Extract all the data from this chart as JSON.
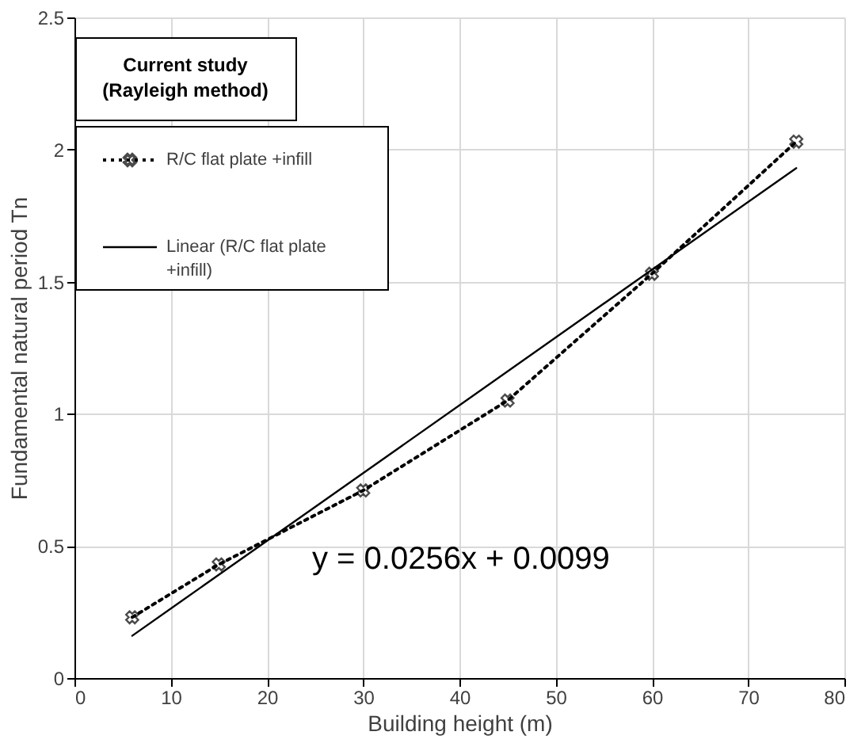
{
  "chart_data": {
    "type": "line",
    "xlabel": "Building height (m)",
    "ylabel": "Fundamental natural period Tn",
    "legend_title": "Current study\n(Rayleigh method)",
    "legend": "top left",
    "grid": true,
    "xlim": [
      0,
      80
    ],
    "xticks": [
      0,
      10,
      20,
      30,
      40,
      50,
      60,
      70,
      80
    ],
    "ylim": [
      0,
      2.5
    ],
    "yticks": [
      0,
      0.5,
      1,
      1.5,
      2,
      2.5
    ],
    "annotations": [
      "y = 0.0256x + 0.0099"
    ],
    "series": [
      {
        "name": "R/C flat plate +infill",
        "color": "#000000",
        "marker": "cross",
        "line_style": "dotted",
        "x": [
          6,
          15,
          30,
          45,
          60,
          75
        ],
        "values": [
          0.23,
          0.43,
          0.71,
          1.05,
          1.53,
          2.03
        ]
      },
      {
        "name": "Linear (R/C flat plate\n+infill)",
        "color": "#000000",
        "marker": "none",
        "line_style": "solid",
        "x": [
          6,
          75
        ],
        "values": [
          0.16,
          1.93
        ]
      }
    ]
  }
}
